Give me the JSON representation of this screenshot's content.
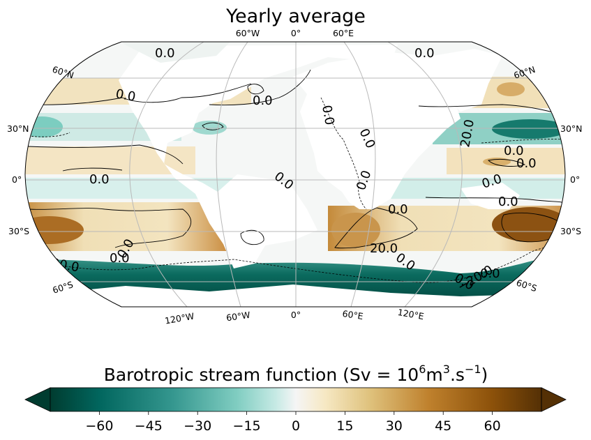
{
  "title": "Yearly average",
  "colorbar": {
    "label_text": "Barotropic stream function (Sv = 10",
    "label_sup1": "6",
    "label_mid": "m",
    "label_sup2": "3",
    "label_end": ".s",
    "label_sup3": "−1",
    "label_close": ")",
    "ticks": [
      "−60",
      "−45",
      "−30",
      "−15",
      "0",
      "15",
      "30",
      "45",
      "60"
    ],
    "range": [
      -75,
      75
    ],
    "colormap": "BrBG (reversed)",
    "extend": "both"
  },
  "map": {
    "projection": "Robinson",
    "gridlines": true,
    "lat_labels_left": [
      "60°N",
      "30°N",
      "0°",
      "30°S",
      "60°S"
    ],
    "lat_labels_right": [
      "60°N",
      "30°N",
      "0°",
      "30°S",
      "60°S"
    ],
    "lon_labels_top": [
      "60°W",
      "0°",
      "60°E"
    ],
    "lon_labels_bottom": [
      "120°W",
      "60°W",
      "0°",
      "60°E",
      "120°E"
    ],
    "contour_labels": [
      "0.0",
      "0.0",
      "0.0",
      "0.0",
      "0.0",
      "0.0",
      "0.0",
      "0.0",
      "0.0",
      "0.0",
      "0.0",
      "0.0",
      "0.0",
      "20.0",
      "0.0",
      "0.0",
      "0.0",
      "0.0",
      "20.0",
      "0.0",
      "−20.0",
      "0.0",
      "−20.0"
    ],
    "land_color": "#ffffff",
    "colors": {
      "deep_teal": "#01403a",
      "teal": "#0e7266",
      "light_teal": "#a6ddd6",
      "neutral": "#f5f5f5",
      "tan": "#eedbb0",
      "brown": "#a3651c",
      "dark_brown": "#6b3a08"
    }
  }
}
